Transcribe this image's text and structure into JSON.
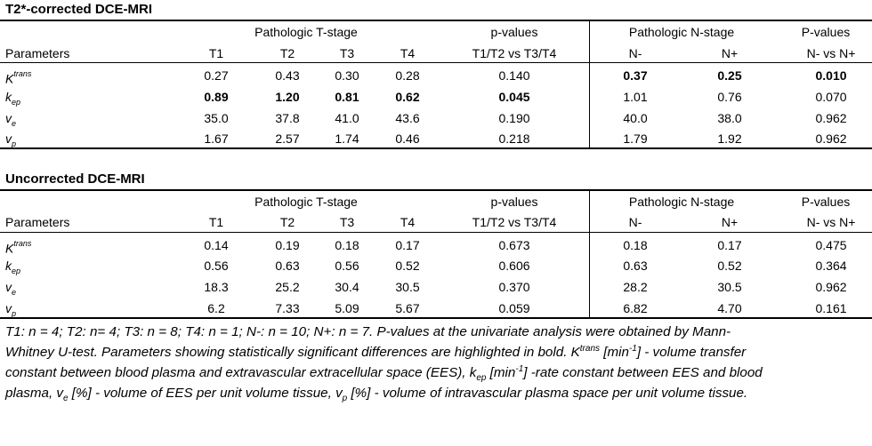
{
  "tables": [
    {
      "title": "T2*-corrected DCE-MRI",
      "header_groups": {
        "t_stage": "Pathologic T-stage",
        "p_values_t": "p-values",
        "n_stage": "Pathologic N-stage",
        "p_values_n": "P-values"
      },
      "columns": [
        "Parameters",
        "T1",
        "T2",
        "T3",
        "T4",
        "T1/T2 vs T3/T4",
        "N-",
        "N+",
        "N- vs N+"
      ],
      "rows": [
        {
          "param_main": "K",
          "param_sup": "trans",
          "param_sub": "",
          "cells": [
            "0.27",
            "0.43",
            "0.30",
            "0.28",
            "0.140",
            "0.37",
            "0.25",
            "0.010"
          ],
          "bold": [
            false,
            false,
            false,
            false,
            false,
            true,
            true,
            true
          ]
        },
        {
          "param_main": "k",
          "param_sup": "",
          "param_sub": "ep",
          "cells": [
            "0.89",
            "1.20",
            "0.81",
            "0.62",
            "0.045",
            "1.01",
            "0.76",
            "0.070"
          ],
          "bold": [
            true,
            true,
            true,
            true,
            true,
            false,
            false,
            false
          ]
        },
        {
          "param_main": "v",
          "param_sup": "",
          "param_sub": "e",
          "cells": [
            "35.0",
            "37.8",
            "41.0",
            "43.6",
            "0.190",
            "40.0",
            "38.0",
            "0.962"
          ],
          "bold": [
            false,
            false,
            false,
            false,
            false,
            false,
            false,
            false
          ]
        },
        {
          "param_main": "v",
          "param_sup": "",
          "param_sub": "p",
          "cells": [
            "1.67",
            "2.57",
            "1.74",
            "0.46",
            "0.218",
            "1.79",
            "1.92",
            "0.962"
          ],
          "bold": [
            false,
            false,
            false,
            false,
            false,
            false,
            false,
            false
          ]
        }
      ]
    },
    {
      "title": "Uncorrected DCE-MRI",
      "header_groups": {
        "t_stage": "Pathologic T-stage",
        "p_values_t": "p-values",
        "n_stage": "Pathologic N-stage",
        "p_values_n": "P-values"
      },
      "columns": [
        "Parameters",
        "T1",
        "T2",
        "T3",
        "T4",
        "T1/T2 vs T3/T4",
        "N-",
        "N+",
        "N- vs N+"
      ],
      "rows": [
        {
          "param_main": "K",
          "param_sup": "trans",
          "param_sub": "",
          "cells": [
            "0.14",
            "0.19",
            "0.18",
            "0.17",
            "0.673",
            "0.18",
            "0.17",
            "0.475"
          ],
          "bold": [
            false,
            false,
            false,
            false,
            false,
            false,
            false,
            false
          ]
        },
        {
          "param_main": "k",
          "param_sup": "",
          "param_sub": "ep",
          "cells": [
            "0.56",
            "0.63",
            "0.56",
            "0.52",
            "0.606",
            "0.63",
            "0.52",
            "0.364"
          ],
          "bold": [
            false,
            false,
            false,
            false,
            false,
            false,
            false,
            false
          ]
        },
        {
          "param_main": "v",
          "param_sup": "",
          "param_sub": "e",
          "cells": [
            "18.3",
            "25.2",
            "30.4",
            "30.5",
            "0.370",
            "28.2",
            "30.5",
            "0.962"
          ],
          "bold": [
            false,
            false,
            false,
            false,
            false,
            false,
            false,
            false
          ]
        },
        {
          "param_main": "v",
          "param_sup": "",
          "param_sub": "p",
          "cells": [
            "6.2",
            "7.33",
            "5.09",
            "5.67",
            "0.059",
            "6.82",
            "4.70",
            "0.161"
          ],
          "bold": [
            false,
            false,
            false,
            false,
            false,
            false,
            false,
            false
          ]
        }
      ]
    }
  ],
  "footnote": {
    "line1": "T1: n = 4; T2: n= 4; T3: n = 8; T4: n = 1; N-: n = 10; N+: n = 7. P-values at the univariate analysis were obtained by Mann-",
    "line2_a": "Whitney U-test. Parameters showing statistically significant differences are highlighted in bold. K",
    "line2_sup": "trans",
    "line2_b": " [min",
    "line2_sup2": "-1",
    "line2_c": "] - volume transfer",
    "line3_a": "constant between blood plasma and extravascular extracellular space (EES), k",
    "line3_sub": "ep",
    "line3_b": " [min",
    "line3_sup": "-1",
    "line3_c": "] -rate constant between EES and blood",
    "line4_a": "plasma, v",
    "line4_sub": "e",
    "line4_b": " [%] - volume of EES per unit volume tissue, v",
    "line4_sub2": "p",
    "line4_c": " [%] - volume of intravascular plasma space per unit volume tissue."
  }
}
